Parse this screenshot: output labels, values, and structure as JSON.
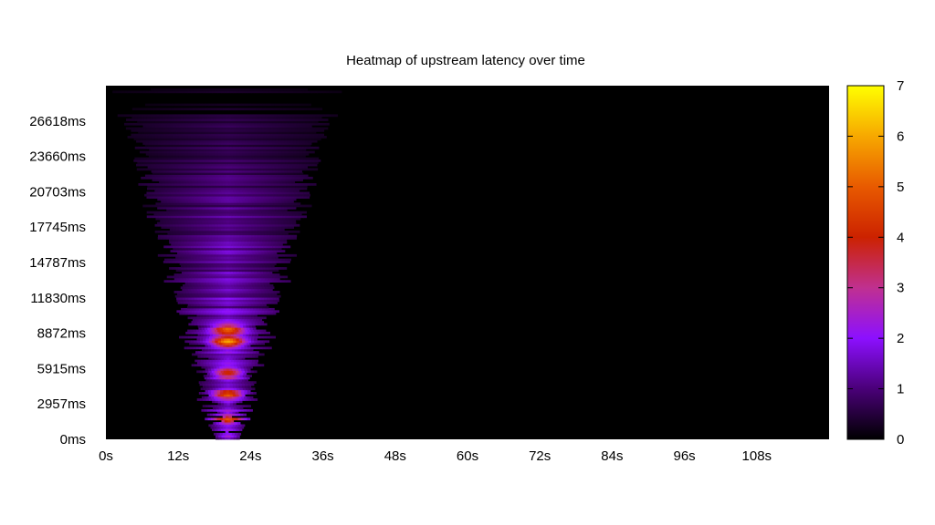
{
  "chart_data": {
    "type": "heatmap",
    "title": "Heatmap of upstream latency over time",
    "xlabel": "",
    "ylabel": "",
    "x_ticks": [
      "0s",
      "12s",
      "24s",
      "36s",
      "48s",
      "60s",
      "72s",
      "84s",
      "96s",
      "108s"
    ],
    "y_ticks": [
      "0ms",
      "2957ms",
      "5915ms",
      "8872ms",
      "11830ms",
      "14787ms",
      "17745ms",
      "20703ms",
      "23660ms",
      "26618ms"
    ],
    "xlim": [
      0,
      120
    ],
    "ylim": [
      0,
      29575
    ],
    "colorbar": {
      "ticks": [
        "0",
        "1",
        "2",
        "3",
        "4",
        "5",
        "6",
        "7"
      ],
      "range": [
        0,
        7
      ],
      "palette": [
        "#000000",
        "#4a0078",
        "#8c10ff",
        "#c03090",
        "#cc2200",
        "#e85a00",
        "#f7a800",
        "#ffff00"
      ]
    },
    "density": {
      "peak_time_s": 20,
      "cone_halfwidth_s_per_ms": 0.000555,
      "hotspots": [
        {
          "t": 20,
          "ms": 8100,
          "value": 6.1
        },
        {
          "t": 20,
          "ms": 9100,
          "value": 5.2
        },
        {
          "t": 20,
          "ms": 5500,
          "value": 5.0
        },
        {
          "t": 20,
          "ms": 3700,
          "value": 4.9
        },
        {
          "t": 20,
          "ms": 1600,
          "value": 4.6
        }
      ]
    }
  }
}
